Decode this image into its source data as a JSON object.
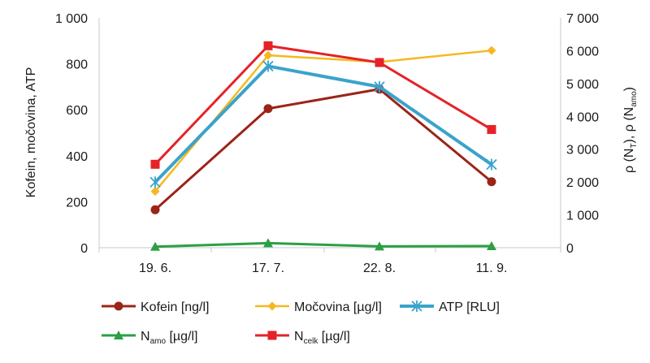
{
  "chart_data": {
    "type": "line",
    "categories": [
      "19. 6.",
      "17. 7.",
      "22. 8.",
      "11. 9."
    ],
    "left_axis": {
      "label": "Kofein, močovina, ATP",
      "range": [
        0,
        1000
      ],
      "ticks": [
        0,
        200,
        400,
        600,
        800,
        1000
      ],
      "tick_labels": [
        "0",
        "200",
        "400",
        "600",
        "800",
        "1 000"
      ]
    },
    "right_axis": {
      "label_parts": [
        "ρ (N",
        "T",
        "), ρ (N",
        "amo",
        ")"
      ],
      "range": [
        0,
        7000
      ],
      "ticks": [
        0,
        1000,
        2000,
        3000,
        4000,
        5000,
        6000,
        7000
      ],
      "tick_labels": [
        "0",
        "1 000",
        "2 000",
        "3 000",
        "4 000",
        "5 000",
        "6 000",
        "7 000"
      ]
    },
    "grid": false,
    "legend_position": "bottom",
    "series": [
      {
        "name": "Kofein [ng/l]",
        "legend_main": "Kofein [ng/l]",
        "legend_sub": "",
        "legend_rest": "",
        "axis": "left",
        "color": "#9b2418",
        "marker": "circle",
        "width": 3,
        "values": [
          165,
          605,
          690,
          287
        ]
      },
      {
        "name": "Močovina [µg/l]",
        "legend_main": "Močovina [µg/l]",
        "legend_sub": "",
        "legend_rest": "",
        "axis": "left",
        "color": "#f5b820",
        "marker": "diamond",
        "width": 2.5,
        "values": [
          245,
          837,
          808,
          858
        ]
      },
      {
        "name": "ATP [RLU]",
        "legend_main": "ATP [RLU]",
        "legend_sub": "",
        "legend_rest": "",
        "axis": "left",
        "color": "#3aa3cc",
        "marker": "asterisk",
        "width": 4,
        "values": [
          285,
          790,
          700,
          362
        ]
      },
      {
        "name": "Namo [µg/l]",
        "legend_main": "N",
        "legend_sub": "amo",
        "legend_rest": " [µg/l]",
        "axis": "right",
        "color": "#2aa044",
        "marker": "triangle",
        "width": 3,
        "values": [
          30,
          140,
          40,
          50
        ]
      },
      {
        "name": "Ncelk [µg/l]",
        "legend_main": "N",
        "legend_sub": "celk",
        "legend_rest": " [µg/l]",
        "axis": "right",
        "color": "#e52228",
        "marker": "square",
        "width": 3,
        "values": [
          2540,
          6150,
          5640,
          3600
        ]
      }
    ]
  }
}
